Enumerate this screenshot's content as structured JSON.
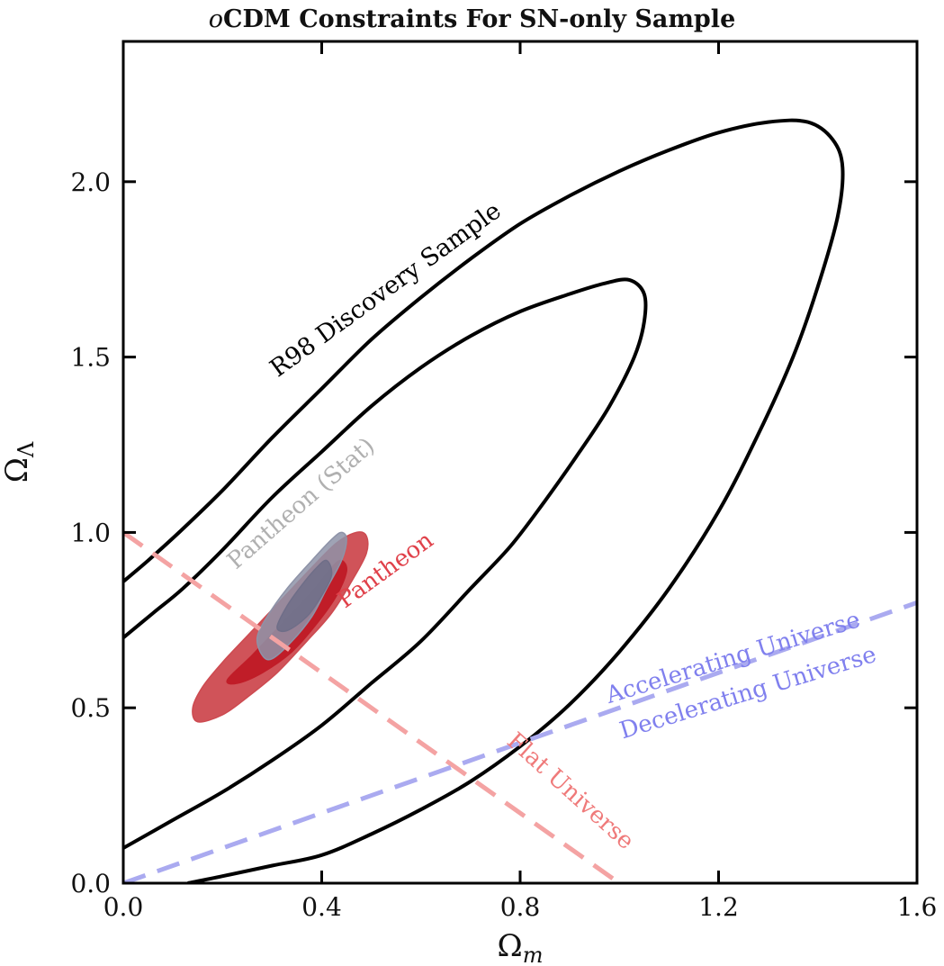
{
  "chart_data": {
    "type": "line",
    "title": "oCDM Constraints For SN-only Sample",
    "title_parts": {
      "italic": "o",
      "rest": "CDM Constraints For SN-only Sample"
    },
    "xlabel": "Ω",
    "xlabel_sub": "m",
    "ylabel": "Ω",
    "ylabel_sub": "Λ",
    "xlim": [
      0.0,
      1.6
    ],
    "ylim": [
      0.0,
      2.4
    ],
    "x_ticks": [
      0.0,
      0.4,
      0.8,
      1.2,
      1.6
    ],
    "x_tick_labels": [
      "0.0",
      "0.4",
      "0.8",
      "1.2",
      "1.6"
    ],
    "y_ticks": [
      0.0,
      0.5,
      1.0,
      1.5,
      2.0
    ],
    "y_tick_labels": [
      "0.0",
      "0.5",
      "1.0",
      "1.5",
      "2.0"
    ],
    "grid": false,
    "colors": {
      "r98": "#000000",
      "pantheon_outer": "#cd4a50",
      "pantheon_inner": "#c01d28",
      "pantheon_stat_outer": "#8e93a8",
      "pantheon_stat_inner": "#6f6e88",
      "flat": "#f4a3a3",
      "accel": "#aaaaf0",
      "flat_text": "#ef7a7a",
      "accel_text": "#8080ee",
      "pantheon_text": "#e0414a",
      "pantheon_stat_text": "#b0b0b0"
    },
    "series": [
      {
        "name": "R98 Discovery Sample",
        "kind": "contour",
        "levels": [
          {
            "level": "outer",
            "points": [
              [
                0.0,
                0.86
              ],
              [
                0.05,
                0.92
              ],
              [
                0.12,
                1.01
              ],
              [
                0.2,
                1.12
              ],
              [
                0.3,
                1.27
              ],
              [
                0.4,
                1.41
              ],
              [
                0.5,
                1.55
              ],
              [
                0.6,
                1.67
              ],
              [
                0.7,
                1.78
              ],
              [
                0.8,
                1.88
              ],
              [
                0.9,
                1.96
              ],
              [
                1.0,
                2.03
              ],
              [
                1.1,
                2.09
              ],
              [
                1.2,
                2.14
              ],
              [
                1.3,
                2.17
              ],
              [
                1.38,
                2.17
              ],
              [
                1.43,
                2.12
              ],
              [
                1.45,
                2.04
              ],
              [
                1.44,
                1.9
              ],
              [
                1.4,
                1.7
              ],
              [
                1.35,
                1.5
              ],
              [
                1.28,
                1.28
              ],
              [
                1.2,
                1.06
              ],
              [
                1.1,
                0.84
              ],
              [
                1.0,
                0.66
              ],
              [
                0.9,
                0.51
              ],
              [
                0.8,
                0.39
              ],
              [
                0.7,
                0.29
              ],
              [
                0.6,
                0.21
              ],
              [
                0.5,
                0.14
              ],
              [
                0.4,
                0.08
              ],
              [
                0.3,
                0.05
              ],
              [
                0.2,
                0.02
              ],
              [
                0.13,
                0.0
              ]
            ]
          },
          {
            "level": "inner",
            "points": [
              [
                0.0,
                0.7
              ],
              [
                0.06,
                0.77
              ],
              [
                0.12,
                0.84
              ],
              [
                0.2,
                0.95
              ],
              [
                0.3,
                1.1
              ],
              [
                0.4,
                1.23
              ],
              [
                0.5,
                1.36
              ],
              [
                0.6,
                1.47
              ],
              [
                0.7,
                1.56
              ],
              [
                0.8,
                1.63
              ],
              [
                0.9,
                1.68
              ],
              [
                0.97,
                1.71
              ],
              [
                1.02,
                1.72
              ],
              [
                1.05,
                1.68
              ],
              [
                1.05,
                1.6
              ],
              [
                1.03,
                1.5
              ],
              [
                0.98,
                1.36
              ],
              [
                0.92,
                1.23
              ],
              [
                0.85,
                1.09
              ],
              [
                0.78,
                0.96
              ],
              [
                0.7,
                0.84
              ],
              [
                0.6,
                0.69
              ],
              [
                0.5,
                0.57
              ],
              [
                0.4,
                0.45
              ],
              [
                0.3,
                0.35
              ],
              [
                0.2,
                0.26
              ],
              [
                0.1,
                0.18
              ],
              [
                0.0,
                0.1
              ]
            ]
          }
        ]
      },
      {
        "name": "Pantheon",
        "kind": "filled-contour",
        "levels": [
          {
            "level": "outer",
            "points": [
              [
                0.15,
                0.46
              ],
              [
                0.14,
                0.5
              ],
              [
                0.16,
                0.56
              ],
              [
                0.2,
                0.63
              ],
              [
                0.26,
                0.72
              ],
              [
                0.32,
                0.81
              ],
              [
                0.38,
                0.9
              ],
              [
                0.43,
                0.97
              ],
              [
                0.47,
                1.0
              ],
              [
                0.49,
                0.99
              ],
              [
                0.49,
                0.94
              ],
              [
                0.46,
                0.86
              ],
              [
                0.42,
                0.77
              ],
              [
                0.37,
                0.69
              ],
              [
                0.31,
                0.6
              ],
              [
                0.25,
                0.53
              ],
              [
                0.2,
                0.48
              ]
            ]
          },
          {
            "level": "inner",
            "points": [
              [
                0.21,
                0.58
              ],
              [
                0.26,
                0.65
              ],
              [
                0.32,
                0.74
              ],
              [
                0.38,
                0.83
              ],
              [
                0.42,
                0.9
              ],
              [
                0.44,
                0.92
              ],
              [
                0.45,
                0.89
              ],
              [
                0.43,
                0.82
              ],
              [
                0.39,
                0.74
              ],
              [
                0.34,
                0.66
              ],
              [
                0.28,
                0.6
              ],
              [
                0.23,
                0.57
              ]
            ]
          }
        ]
      },
      {
        "name": "Pantheon (Stat)",
        "kind": "filled-contour",
        "levels": [
          {
            "level": "outer",
            "points": [
              [
                0.28,
                0.65
              ],
              [
                0.27,
                0.7
              ],
              [
                0.29,
                0.76
              ],
              [
                0.33,
                0.84
              ],
              [
                0.38,
                0.92
              ],
              [
                0.42,
                0.98
              ],
              [
                0.44,
                1.0
              ],
              [
                0.45,
                0.98
              ],
              [
                0.44,
                0.92
              ],
              [
                0.41,
                0.84
              ],
              [
                0.38,
                0.76
              ],
              [
                0.34,
                0.69
              ],
              [
                0.3,
                0.64
              ]
            ]
          },
          {
            "level": "inner",
            "points": [
              [
                0.31,
                0.73
              ],
              [
                0.33,
                0.79
              ],
              [
                0.36,
                0.85
              ],
              [
                0.39,
                0.9
              ],
              [
                0.41,
                0.92
              ],
              [
                0.42,
                0.88
              ],
              [
                0.4,
                0.82
              ],
              [
                0.37,
                0.76
              ],
              [
                0.33,
                0.72
              ]
            ]
          }
        ]
      },
      {
        "name": "Flat Universe",
        "kind": "dashed-line",
        "points": [
          [
            0.0,
            1.0
          ],
          [
            1.0,
            0.0
          ]
        ]
      },
      {
        "name": "Accelerating / Decelerating boundary",
        "kind": "dashed-line",
        "points": [
          [
            0.0,
            0.0
          ],
          [
            1.6,
            0.8
          ]
        ]
      }
    ],
    "annotations": [
      {
        "text": "R98 Discovery Sample",
        "x": 0.53,
        "y": 1.69,
        "angle": -36,
        "size": 27,
        "color_key": "r98"
      },
      {
        "text": "Pantheon (Stat)",
        "x": 0.36,
        "y": 1.08,
        "angle": -41,
        "size": 26,
        "color_key": "pantheon_stat_text"
      },
      {
        "text": "Pantheon",
        "x": 0.53,
        "y": 0.89,
        "angle": -36,
        "size": 26,
        "color_key": "pantheon_text"
      },
      {
        "text": "Flat Universe",
        "x": 0.9,
        "y": 0.26,
        "angle": 42,
        "size": 26,
        "color_key": "flat_text"
      },
      {
        "text": "Accelerating Universe",
        "x": 1.23,
        "y": 0.64,
        "angle": -17,
        "size": 26,
        "color_key": "accel_text"
      },
      {
        "text": "Decelerating Universe",
        "x": 1.26,
        "y": 0.54,
        "angle": -17,
        "size": 26,
        "color_key": "accel_text"
      }
    ]
  }
}
